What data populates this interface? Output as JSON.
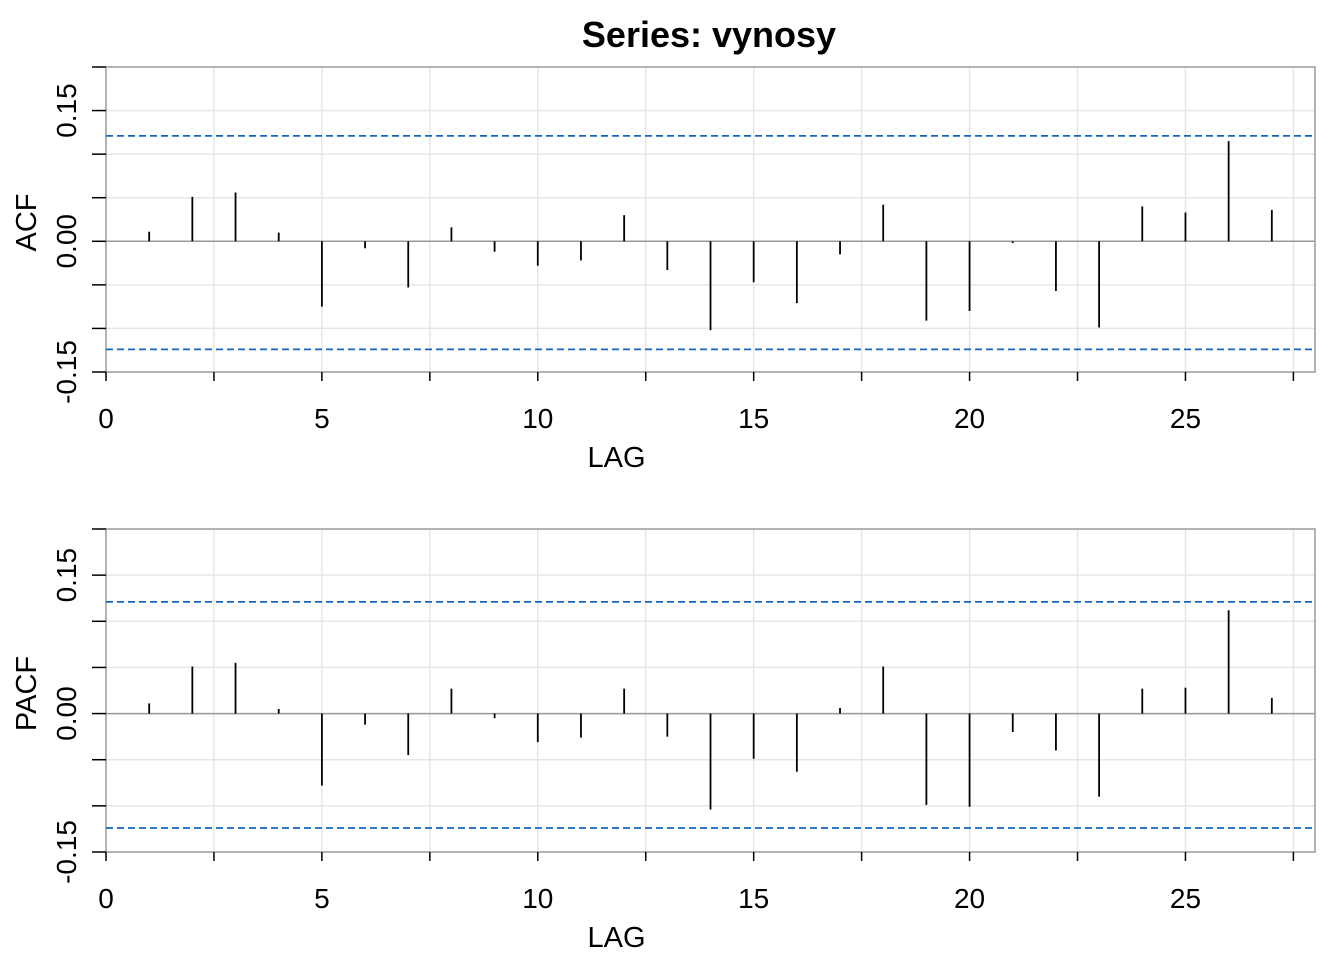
{
  "title": "Series:  vynosy",
  "chart_data": [
    {
      "type": "bar",
      "name": "acf",
      "xlabel": "LAG",
      "ylabel": "ACF",
      "xlim": [
        0,
        28
      ],
      "ylim": [
        -0.15,
        0.2
      ],
      "xticks": [
        0,
        5,
        10,
        15,
        20,
        25
      ],
      "yticks": [
        -0.15,
        0.0,
        0.15
      ],
      "ytick_labels": [
        "-0.15",
        "0.00",
        "0.15"
      ],
      "grid": true,
      "colors": {
        "bars": "#000000",
        "ci_lines": "#1565C0",
        "zero_line": "#999999",
        "grid": "#e6e6e6",
        "frame": "#9a9a9a"
      },
      "confidence_bounds": [
        0.121,
        -0.124
      ],
      "x": [
        1,
        2,
        3,
        4,
        5,
        6,
        7,
        8,
        9,
        10,
        11,
        12,
        13,
        14,
        15,
        16,
        17,
        18,
        19,
        20,
        21,
        22,
        23,
        24,
        25,
        26,
        27
      ],
      "values": [
        0.011,
        0.051,
        0.056,
        0.01,
        -0.075,
        -0.008,
        -0.053,
        0.016,
        -0.012,
        -0.028,
        -0.022,
        0.03,
        -0.033,
        -0.102,
        -0.047,
        -0.071,
        -0.015,
        0.042,
        -0.091,
        -0.08,
        -0.002,
        -0.057,
        -0.099,
        0.04,
        0.033,
        0.115,
        0.036
      ]
    },
    {
      "type": "bar",
      "name": "pacf",
      "xlabel": "LAG",
      "ylabel": "PACF",
      "xlim": [
        0,
        28
      ],
      "ylim": [
        -0.15,
        0.2
      ],
      "xticks": [
        0,
        5,
        10,
        15,
        20,
        25
      ],
      "yticks": [
        -0.15,
        0.0,
        0.15
      ],
      "ytick_labels": [
        "-0.15",
        "0.00",
        "0.15"
      ],
      "grid": true,
      "colors": {
        "bars": "#000000",
        "ci_lines": "#1565C0",
        "zero_line": "#999999",
        "grid": "#e6e6e6",
        "frame": "#9a9a9a"
      },
      "confidence_bounds": [
        0.121,
        -0.124
      ],
      "x": [
        1,
        2,
        3,
        4,
        5,
        6,
        7,
        8,
        9,
        10,
        11,
        12,
        13,
        14,
        15,
        16,
        17,
        18,
        19,
        20,
        21,
        22,
        23,
        24,
        25,
        26,
        27
      ],
      "values": [
        0.011,
        0.051,
        0.055,
        0.005,
        -0.078,
        -0.012,
        -0.045,
        0.027,
        -0.005,
        -0.031,
        -0.026,
        0.027,
        -0.025,
        -0.104,
        -0.049,
        -0.063,
        0.006,
        0.051,
        -0.099,
        -0.101,
        -0.02,
        -0.04,
        -0.09,
        0.027,
        0.028,
        0.112,
        0.017
      ]
    }
  ]
}
